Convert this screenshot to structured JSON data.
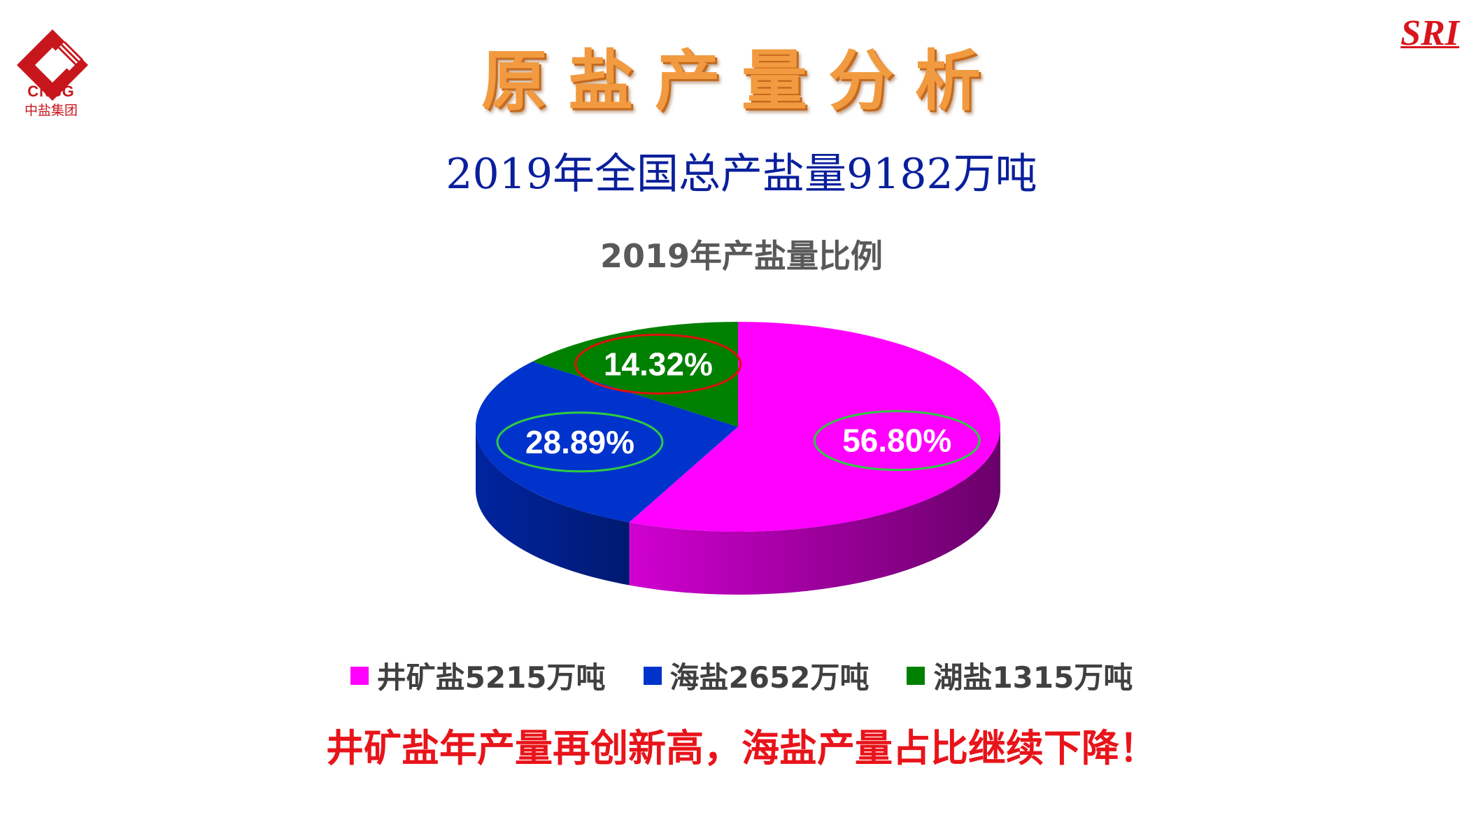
{
  "logo": {
    "abbr": "CNSG",
    "name": "中盐集团",
    "color": "#c8161d"
  },
  "badge": {
    "text": "SRI",
    "color": "#d8141c"
  },
  "page_title": "原盐产量分析",
  "headline": "2019年全国总产盐量9182万吨",
  "chart_title": "2019年产盐量比例",
  "chart_data": {
    "type": "pie",
    "title": "2019年产盐量比例",
    "categories": [
      "井矿盐",
      "海盐",
      "湖盐"
    ],
    "values": [
      5215,
      2652,
      1315
    ],
    "unit": "万吨",
    "percent_labels": [
      "56.80%",
      "28.89%",
      "14.32%"
    ],
    "percents": [
      56.8,
      28.89,
      14.32
    ],
    "colors": [
      "#ff00ff",
      "#0033cc",
      "#008000"
    ],
    "highlight_rings": [
      "#2ecc40",
      "#2ecc40",
      "#e01010"
    ],
    "legend_position": "bottom",
    "style": "3d"
  },
  "legend": [
    {
      "label": "井矿盐5215万吨",
      "color": "#ff00ff"
    },
    {
      "label": "海盐2652万吨",
      "color": "#0033cc"
    },
    {
      "label": "湖盐1315万吨",
      "color": "#008000"
    }
  ],
  "footnote": "井矿盐年产量再创新高，海盐产量占比继续下降！"
}
